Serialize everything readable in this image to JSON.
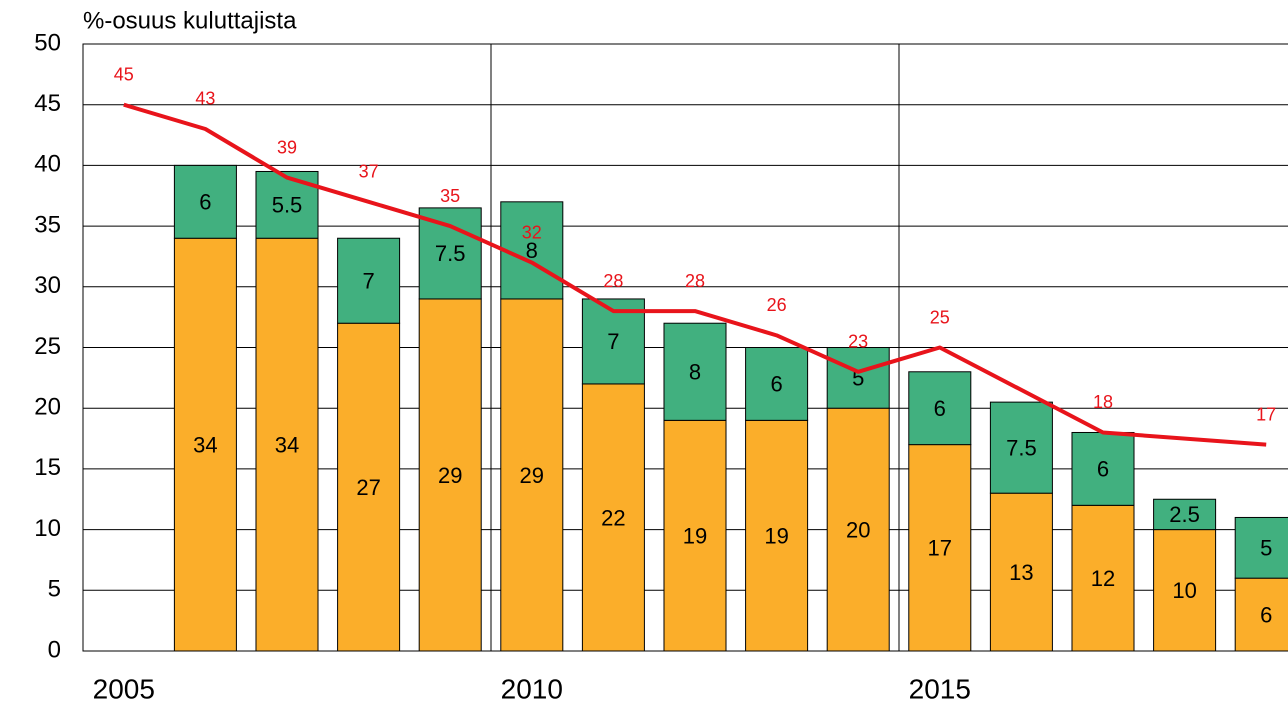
{
  "chart_data": {
    "type": "bar",
    "y_label": "%-osuus kuluttajista",
    "ylim": [
      0,
      50
    ],
    "yticks": [
      0,
      5,
      10,
      15,
      20,
      25,
      30,
      35,
      40,
      45,
      50
    ],
    "xlim": [
      2004.5,
      2019.5
    ],
    "xticks": [
      2005,
      2010,
      2015
    ],
    "xgrid": [
      2009.5,
      2014.5
    ],
    "grid": true,
    "stacked": true,
    "series": [
      {
        "type": "bar",
        "color": "#fbae2a",
        "x": [
          2006,
          2007,
          2008,
          2009,
          2010,
          2011,
          2012,
          2013,
          2014,
          2015,
          2016,
          2017,
          2018,
          2019
        ],
        "values": [
          34,
          34,
          27,
          29,
          29,
          22,
          19,
          19,
          20,
          17,
          13,
          12,
          10,
          6
        ]
      },
      {
        "type": "bar",
        "color": "#41b07f",
        "x": [
          2006,
          2007,
          2008,
          2009,
          2010,
          2011,
          2012,
          2013,
          2014,
          2015,
          2016,
          2017,
          2018,
          2019
        ],
        "values": [
          6,
          5.5,
          7,
          7.5,
          8,
          7,
          8,
          6,
          5,
          6,
          7.5,
          6,
          2.5,
          5
        ]
      },
      {
        "type": "line",
        "color": "#e8141b",
        "x": [
          2005,
          2006,
          2007,
          2008,
          2009,
          2010,
          2011,
          2012,
          2013,
          2014,
          2015,
          2017,
          2019
        ],
        "values": [
          45,
          43,
          39,
          37,
          35,
          32,
          28,
          28,
          26,
          23,
          25,
          18,
          17
        ]
      }
    ]
  }
}
